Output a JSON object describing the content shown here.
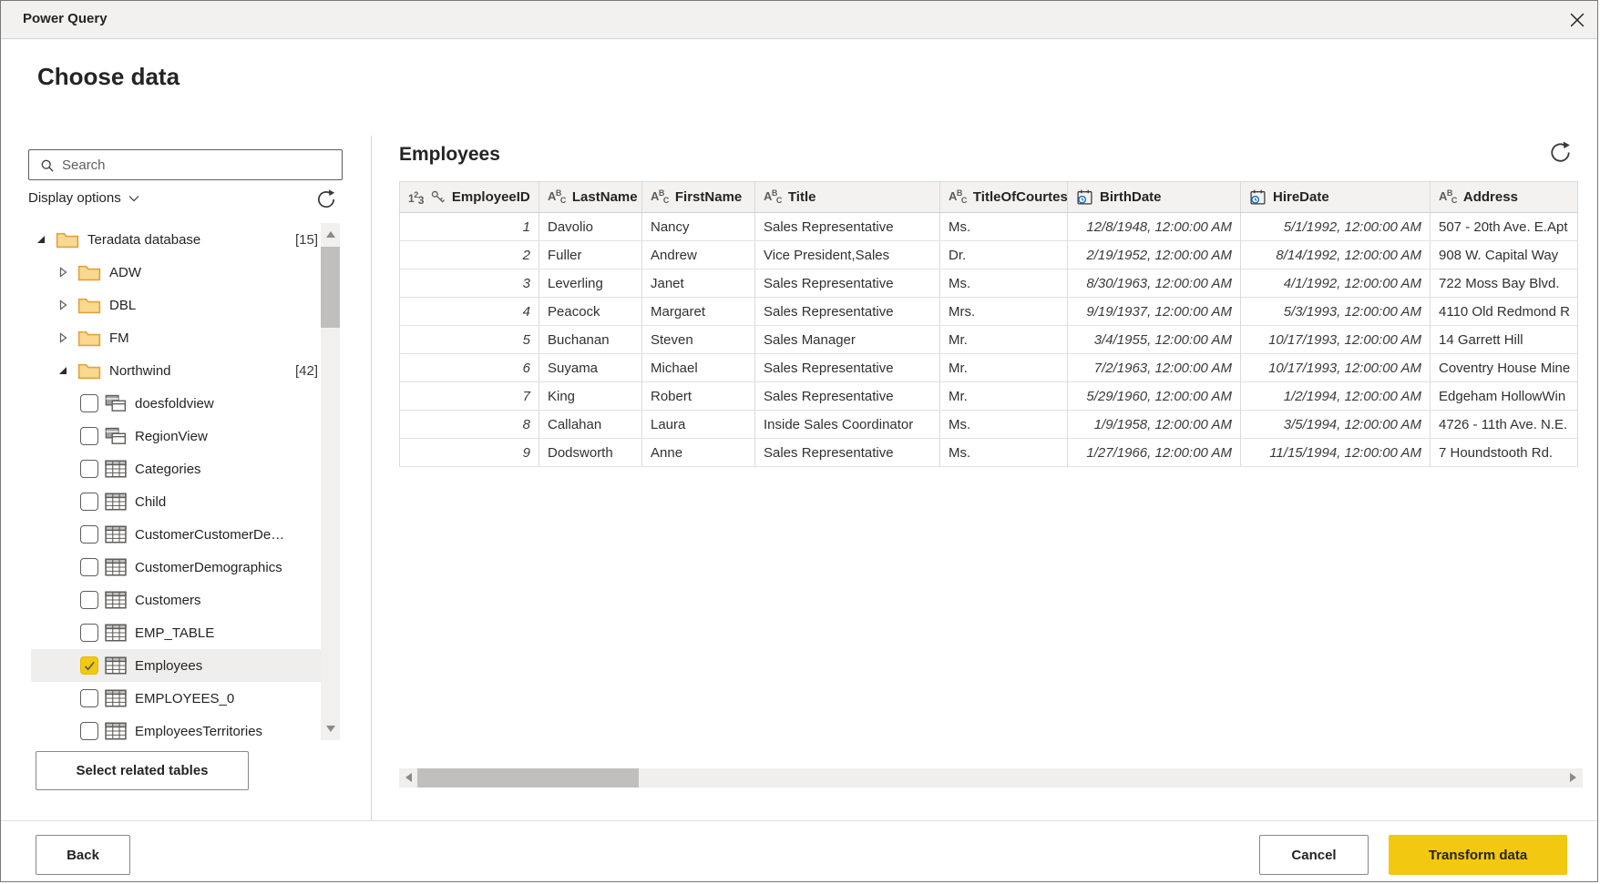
{
  "dialog": {
    "title": "Power Query",
    "heading": "Choose data"
  },
  "sidebar": {
    "search_placeholder": "Search",
    "display_options_label": "Display options",
    "select_related_label": "Select related tables",
    "tree": [
      {
        "label": "Teradata database",
        "type": "folder",
        "level": 1,
        "expanded": true,
        "count": "[15]"
      },
      {
        "label": "ADW",
        "type": "folder",
        "level": 2,
        "expanded": false
      },
      {
        "label": "DBL",
        "type": "folder",
        "level": 2,
        "expanded": false
      },
      {
        "label": "FM",
        "type": "folder",
        "level": 2,
        "expanded": false
      },
      {
        "label": "Northwind",
        "type": "folder",
        "level": 2,
        "expanded": true,
        "count": "[42]"
      },
      {
        "label": "doesfoldview",
        "type": "view",
        "level": 3,
        "checked": false
      },
      {
        "label": "RegionView",
        "type": "view",
        "level": 3,
        "checked": false
      },
      {
        "label": "Categories",
        "type": "table",
        "level": 3,
        "checked": false
      },
      {
        "label": "Child",
        "type": "table",
        "level": 3,
        "checked": false
      },
      {
        "label": "CustomerCustomerDe…",
        "type": "table",
        "level": 3,
        "checked": false
      },
      {
        "label": "CustomerDemographics",
        "type": "table",
        "level": 3,
        "checked": false
      },
      {
        "label": "Customers",
        "type": "table",
        "level": 3,
        "checked": false
      },
      {
        "label": "EMP_TABLE",
        "type": "table",
        "level": 3,
        "checked": false
      },
      {
        "label": "Employees",
        "type": "table",
        "level": 3,
        "checked": true,
        "selected": true
      },
      {
        "label": "EMPLOYEES_0",
        "type": "table",
        "level": 3,
        "checked": false
      },
      {
        "label": "EmployeesTerritories",
        "type": "table",
        "level": 3,
        "checked": false
      }
    ]
  },
  "preview": {
    "title": "Employees",
    "columns": [
      {
        "label": "EmployeeID",
        "type": "number-key"
      },
      {
        "label": "LastName",
        "type": "text"
      },
      {
        "label": "FirstName",
        "type": "text"
      },
      {
        "label": "Title",
        "type": "text"
      },
      {
        "label": "TitleOfCourtesy",
        "type": "text"
      },
      {
        "label": "BirthDate",
        "type": "date"
      },
      {
        "label": "HireDate",
        "type": "date"
      },
      {
        "label": "Address",
        "type": "text"
      }
    ],
    "rows": [
      [
        "1",
        "Davolio",
        "Nancy",
        "Sales Representative",
        "Ms.",
        "12/8/1948, 12:00:00 AM",
        "5/1/1992, 12:00:00 AM",
        "507 - 20th Ave. E.Apt"
      ],
      [
        "2",
        "Fuller",
        "Andrew",
        "Vice President,Sales",
        "Dr.",
        "2/19/1952, 12:00:00 AM",
        "8/14/1992, 12:00:00 AM",
        "908 W. Capital Way"
      ],
      [
        "3",
        "Leverling",
        "Janet",
        "Sales Representative",
        "Ms.",
        "8/30/1963, 12:00:00 AM",
        "4/1/1992, 12:00:00 AM",
        "722 Moss Bay Blvd."
      ],
      [
        "4",
        "Peacock",
        "Margaret",
        "Sales Representative",
        "Mrs.",
        "9/19/1937, 12:00:00 AM",
        "5/3/1993, 12:00:00 AM",
        "4110 Old Redmond R"
      ],
      [
        "5",
        "Buchanan",
        "Steven",
        "Sales Manager",
        "Mr.",
        "3/4/1955, 12:00:00 AM",
        "10/17/1993, 12:00:00 AM",
        "14 Garrett Hill"
      ],
      [
        "6",
        "Suyama",
        "Michael",
        "Sales Representative",
        "Mr.",
        "7/2/1963, 12:00:00 AM",
        "10/17/1993, 12:00:00 AM",
        "Coventry House Mine"
      ],
      [
        "7",
        "King",
        "Robert",
        "Sales Representative",
        "Mr.",
        "5/29/1960, 12:00:00 AM",
        "1/2/1994, 12:00:00 AM",
        "Edgeham HollowWin"
      ],
      [
        "8",
        "Callahan",
        "Laura",
        "Inside Sales Coordinator",
        "Ms.",
        "1/9/1958, 12:00:00 AM",
        "3/5/1994, 12:00:00 AM",
        "4726 - 11th Ave. N.E."
      ],
      [
        "9",
        "Dodsworth",
        "Anne",
        "Sales Representative",
        "Ms.",
        "1/27/1966, 12:00:00 AM",
        "11/15/1994, 12:00:00 AM",
        "7 Houndstooth Rd."
      ]
    ]
  },
  "footer": {
    "back_label": "Back",
    "cancel_label": "Cancel",
    "transform_label": "Transform data"
  },
  "colors": {
    "accent_yellow": "#f2c811",
    "date_icon_clock": "#0f6cbd",
    "folder_fill": "#f9d98f",
    "folder_stroke": "#e1a23b",
    "selected_row_bg": "#efeeed",
    "titlebar_bg": "#f2f1f0",
    "table_header_bg": "#f3f2f1"
  }
}
